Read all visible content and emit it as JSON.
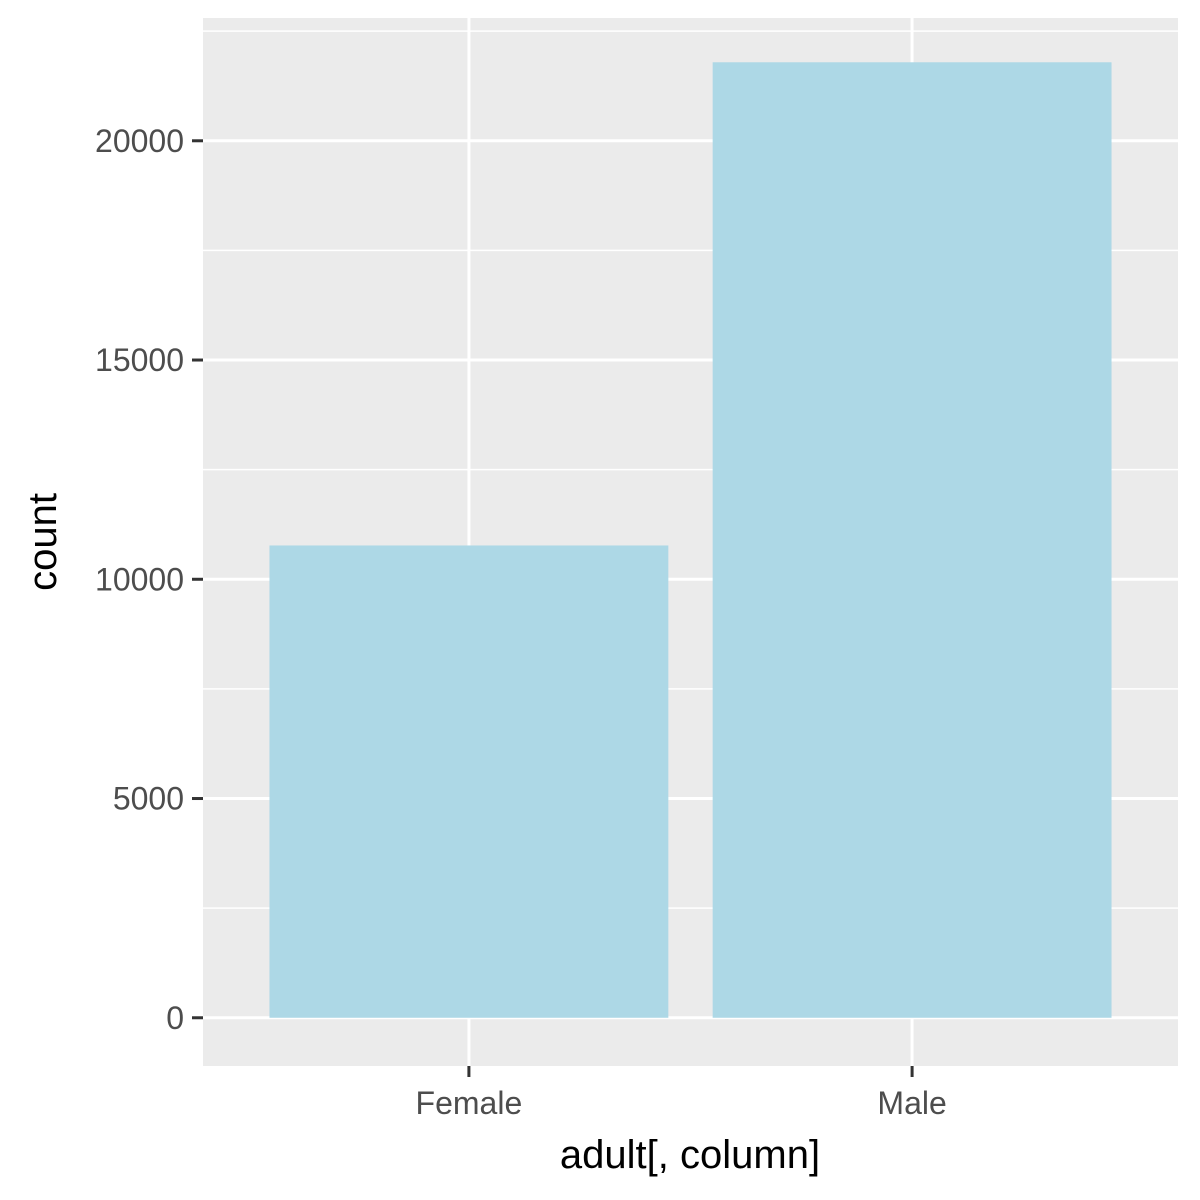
{
  "chart_data": {
    "type": "bar",
    "xlabel": "adult[, column]",
    "ylabel": "count",
    "categories": [
      "Female",
      "Male"
    ],
    "values": [
      10771,
      21790
    ],
    "ylim": [
      -1100,
      22800
    ],
    "y_ticks": [
      0,
      5000,
      10000,
      15000,
      20000
    ],
    "y_minor_ticks": [
      2500,
      7500,
      12500,
      17500,
      22500
    ],
    "grid": true,
    "legend": "none",
    "colors": {
      "bar": "#add8e6",
      "panel": "#ebebeb",
      "grid": "#ffffff",
      "tick": "#333333"
    }
  }
}
